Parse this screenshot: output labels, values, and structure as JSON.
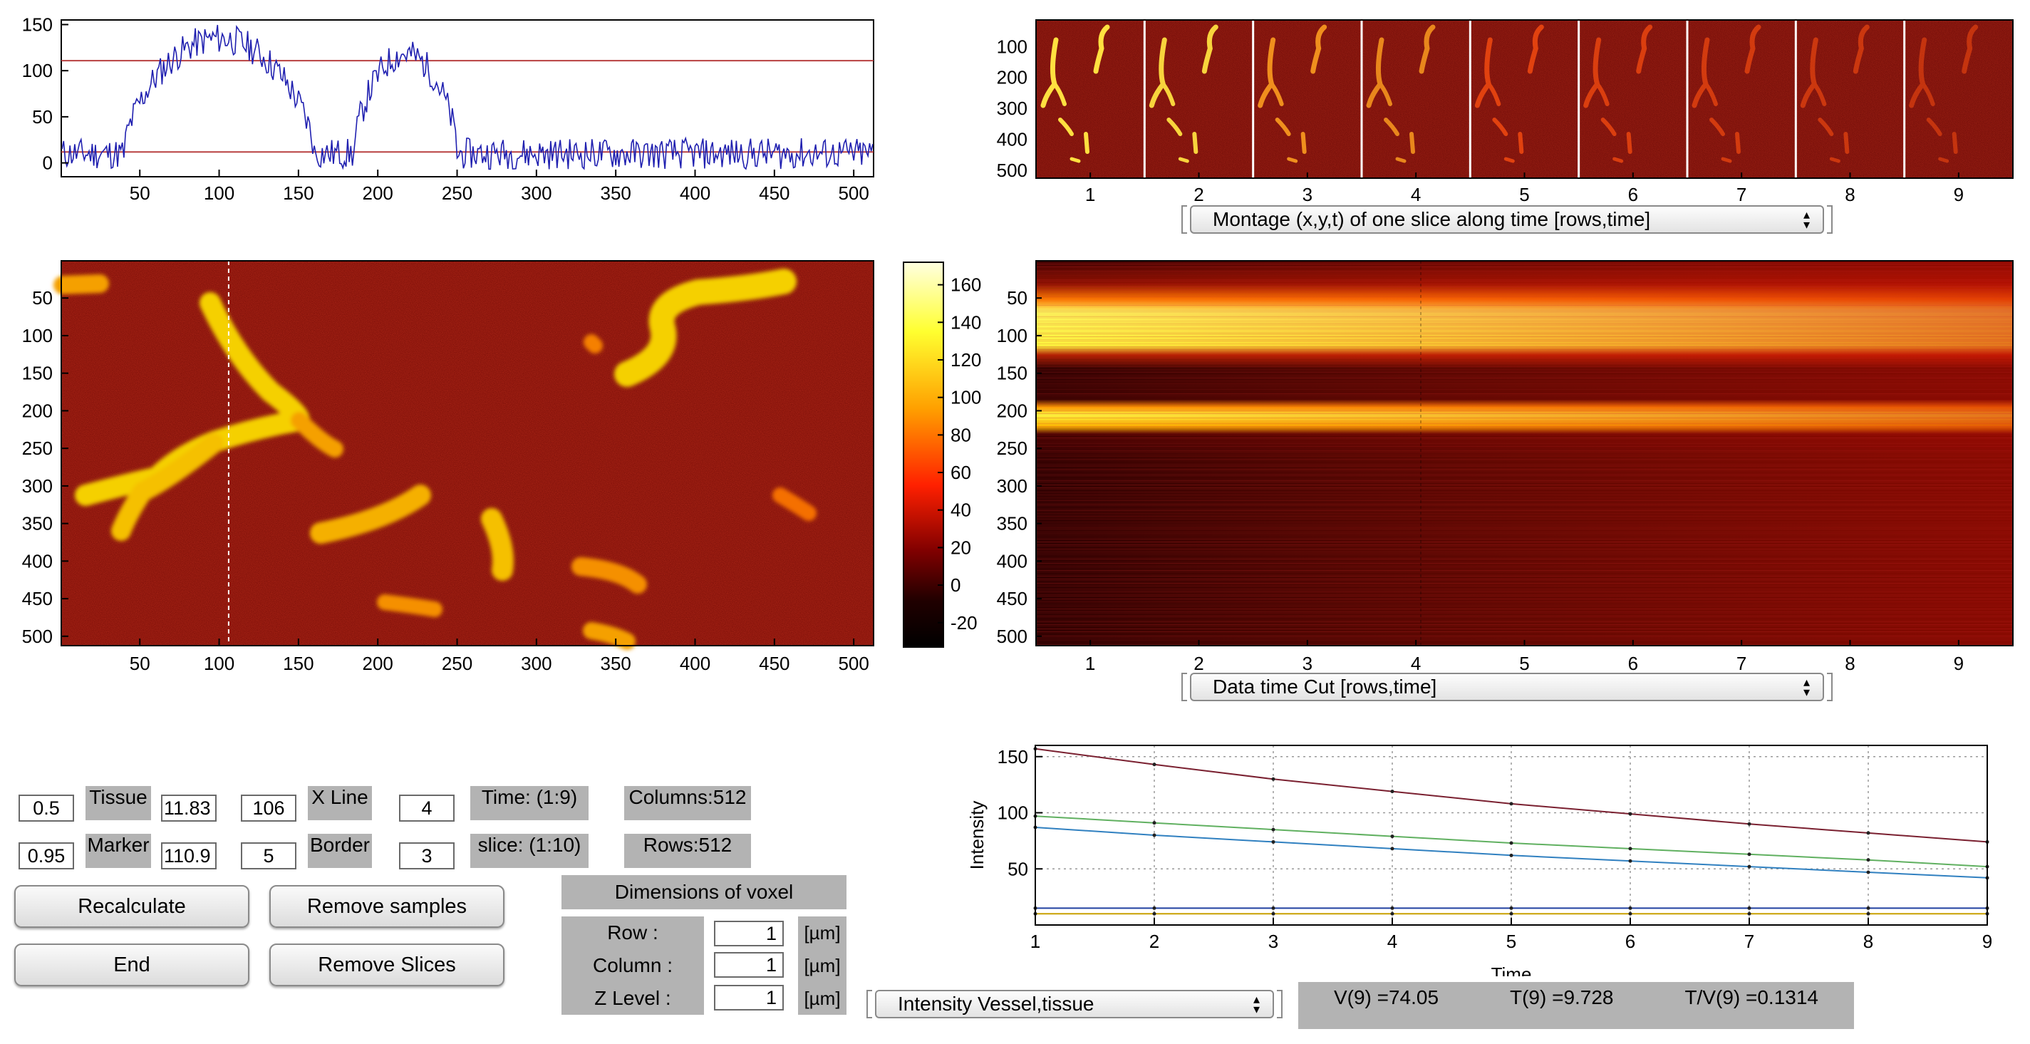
{
  "profile_plot": {
    "y_ticks": [
      "150",
      "100",
      "50",
      "0"
    ],
    "x_ticks": [
      "50",
      "100",
      "150",
      "200",
      "250",
      "300",
      "350",
      "400",
      "450",
      "500"
    ],
    "threshold_high": 110.9,
    "threshold_low": 11.83,
    "line_color": "#2020b0",
    "threshold_color": "#b84040"
  },
  "image_panel": {
    "y_ticks": [
      "50",
      "100",
      "150",
      "200",
      "250",
      "300",
      "350",
      "400",
      "450",
      "500"
    ],
    "x_ticks": [
      "50",
      "100",
      "150",
      "200",
      "250",
      "300",
      "350",
      "400",
      "450",
      "500"
    ],
    "x_line": 106
  },
  "colorbar": {
    "ticks": [
      "160",
      "140",
      "120",
      "100",
      "80",
      "60",
      "40",
      "20",
      "0",
      "-20"
    ]
  },
  "montage": {
    "y_ticks": [
      "100",
      "200",
      "300",
      "400",
      "500"
    ],
    "x_ticks": [
      "1",
      "2",
      "3",
      "4",
      "5",
      "6",
      "7",
      "8",
      "9"
    ],
    "selector": "Montage (x,y,t) of one slice along time [rows,time]"
  },
  "timecut": {
    "y_ticks": [
      "50",
      "100",
      "150",
      "200",
      "250",
      "300",
      "350",
      "400",
      "450",
      "500"
    ],
    "x_ticks": [
      "1",
      "2",
      "3",
      "4",
      "5",
      "6",
      "7",
      "8",
      "9"
    ],
    "selector": "Data time Cut [rows,time]"
  },
  "intensity_chart": {
    "type": "line",
    "xlabel": "Time",
    "ylabel": "Intensity",
    "x": [
      1,
      2,
      3,
      4,
      5,
      6,
      7,
      8,
      9
    ],
    "y_ticks": [
      "150",
      "100",
      "50"
    ],
    "x_ticks": [
      "1",
      "2",
      "3",
      "4",
      "5",
      "6",
      "7",
      "8",
      "9"
    ],
    "ylim": [
      0,
      160
    ],
    "grid": true,
    "series": [
      {
        "color": "#7a2030",
        "values": [
          157,
          143,
          130,
          119,
          108,
          99,
          90,
          82,
          74
        ]
      },
      {
        "color": "#60b060",
        "values": [
          97,
          91,
          85,
          79,
          73,
          68,
          63,
          58,
          52
        ]
      },
      {
        "color": "#3080c0",
        "values": [
          87,
          80,
          74,
          68,
          62,
          57,
          52,
          47,
          42
        ]
      },
      {
        "color": "#2040a0",
        "values": [
          15,
          15,
          15,
          15,
          15,
          15,
          15,
          15,
          15
        ]
      },
      {
        "color": "#c8a000",
        "values": [
          10,
          10,
          10,
          10,
          10,
          10,
          10,
          10,
          10
        ]
      }
    ],
    "selector": "Intensity Vessel,tissue"
  },
  "controls": {
    "tissue_val": "0.5",
    "tissue_label": "Tissue",
    "tissue_thresh": "11.83",
    "marker_val": "0.95",
    "marker_label": "Marker",
    "marker_thresh": "110.9",
    "xline_val": "106",
    "xline_label": "X Line",
    "border_val": "5",
    "border_label": "Border",
    "time_val": "4",
    "time_label": "Time:  (1:9)",
    "slice_val": "3",
    "slice_label": "slice: (1:10)",
    "columns_label": "Columns:512",
    "rows_label": "Rows:512",
    "recalculate": "Recalculate",
    "remove_samples": "Remove samples",
    "end": "End",
    "remove_slices": "Remove Slices",
    "voxel_title": "Dimensions of voxel",
    "row_label": "Row      :",
    "column_label": "Column  :",
    "zlevel_label": "Z Level  :",
    "row_val": "1",
    "column_val": "1",
    "zlevel_val": "1",
    "unit": "[µm]"
  },
  "results": {
    "v": "V(9) =74.05",
    "t": "T(9) =9.728",
    "tv": "T/V(9) =0.1314"
  }
}
